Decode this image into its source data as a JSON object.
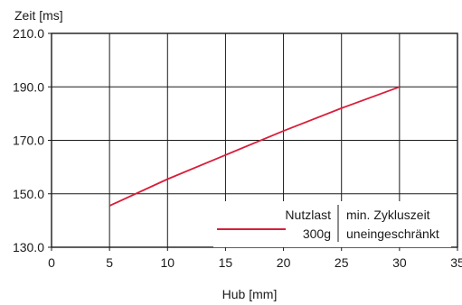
{
  "chart_data": {
    "type": "line",
    "title": "",
    "xlabel": "Hub [mm]",
    "ylabel": "Zeit [ms]",
    "xlim": [
      0,
      35
    ],
    "ylim": [
      130,
      210
    ],
    "x_ticks": [
      0,
      5,
      10,
      15,
      20,
      25,
      30,
      35
    ],
    "y_ticks": [
      130,
      150,
      170,
      190,
      210
    ],
    "x_tick_labels": [
      "0",
      "5",
      "10",
      "15",
      "20",
      "25",
      "30",
      "35"
    ],
    "y_tick_labels": [
      "130.0",
      "150.0",
      "170.0",
      "190.0",
      "210.0"
    ],
    "grid": true,
    "legend": {
      "placement": "bottom-right",
      "header_left": "Nutzlast",
      "header_right_line1": "min. Zykluszeit",
      "series_label": "300g",
      "series_value_line2": "uneingeschränkt"
    },
    "series": [
      {
        "name": "300g",
        "color": "#d81e3a",
        "x": [
          5,
          10,
          15,
          20,
          25,
          30
        ],
        "y": [
          145.5,
          155.5,
          164.5,
          173.5,
          182,
          190
        ]
      }
    ]
  }
}
